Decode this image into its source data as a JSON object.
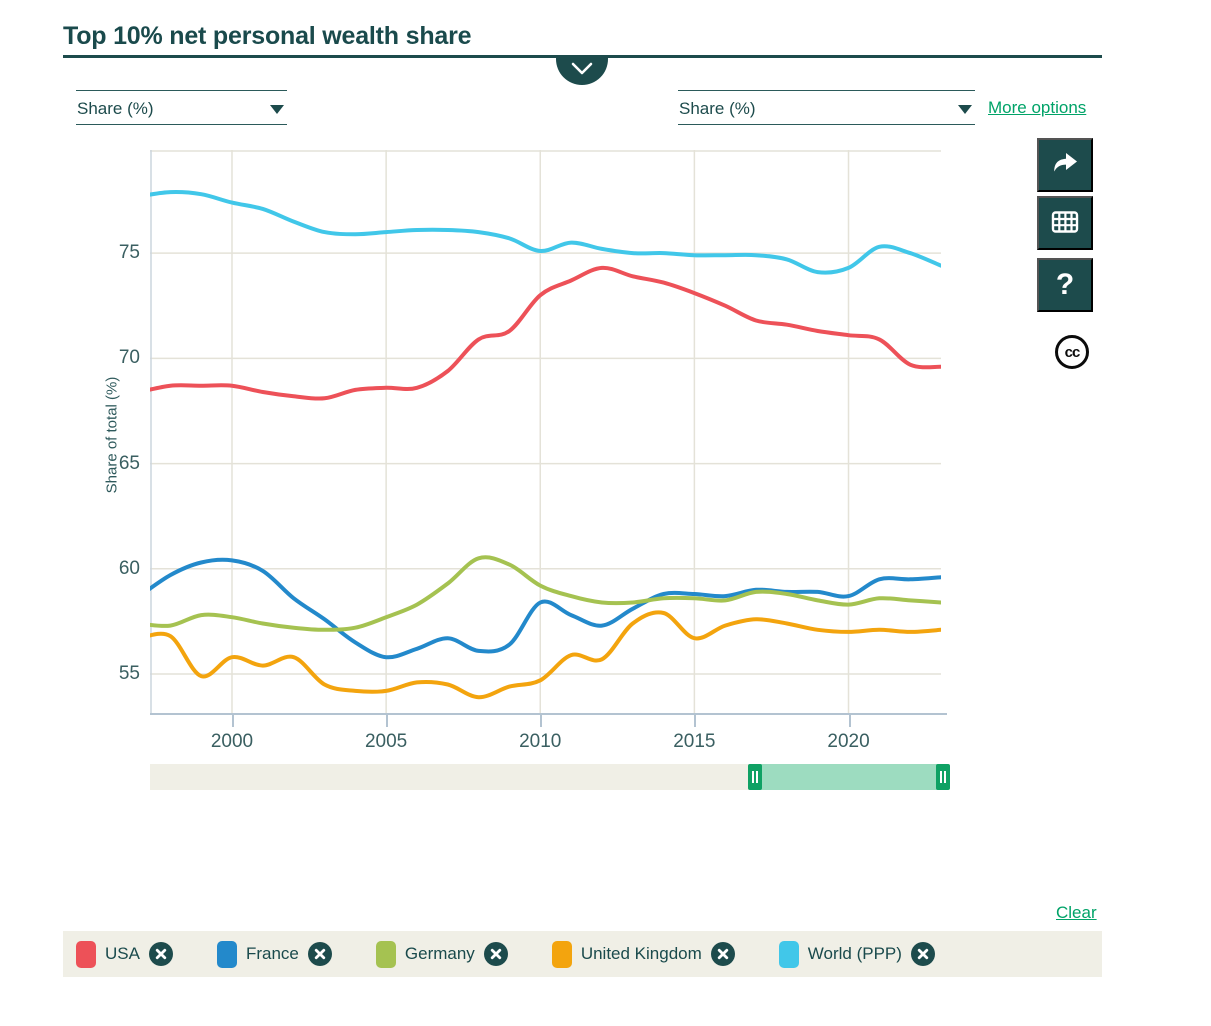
{
  "header": {
    "title": "Top 10% net personal wealth share",
    "collapse_icon": "chevron-down"
  },
  "controls": {
    "left_axis_select": {
      "value": "Share (%)",
      "caret_icon": "triangle-down"
    },
    "right_axis_select": {
      "value": "Share (%)",
      "caret_icon": "triangle-down"
    },
    "more_options_label": "More options"
  },
  "toolbar": {
    "share_icon": "curved-arrow-right",
    "table_icon": "data-grid",
    "help_label": "?",
    "license_label": "cc"
  },
  "chart_data": {
    "type": "line",
    "title": "Top 10% net personal wealth share",
    "ylabel": "Share of total (%)",
    "xlabel": "",
    "x": [
      1997,
      1998,
      1999,
      2000,
      2001,
      2002,
      2003,
      2004,
      2005,
      2006,
      2007,
      2008,
      2009,
      2010,
      2011,
      2012,
      2013,
      2014,
      2015,
      2016,
      2017,
      2018,
      2019,
      2020,
      2021,
      2022,
      2023
    ],
    "series": [
      {
        "name": "USA",
        "color": "#ed5158",
        "values": [
          68.4,
          68.7,
          68.7,
          68.7,
          68.4,
          68.2,
          68.1,
          68.5,
          68.6,
          68.6,
          69.4,
          70.9,
          71.3,
          73.0,
          73.7,
          74.3,
          73.9,
          73.6,
          73.1,
          72.5,
          71.8,
          71.6,
          71.3,
          71.1,
          70.9,
          69.7,
          69.6
        ]
      },
      {
        "name": "France",
        "color": "#2389cb",
        "values": [
          58.7,
          59.7,
          60.3,
          60.4,
          59.9,
          58.6,
          57.6,
          56.5,
          55.8,
          56.2,
          56.7,
          56.1,
          56.4,
          58.4,
          57.8,
          57.3,
          58.1,
          58.8,
          58.8,
          58.7,
          59.0,
          58.9,
          58.9,
          58.7,
          59.5,
          59.5,
          59.6
        ]
      },
      {
        "name": "Germany",
        "color": "#a5c251",
        "values": [
          57.4,
          57.3,
          57.8,
          57.7,
          57.4,
          57.2,
          57.1,
          57.2,
          57.7,
          58.3,
          59.3,
          60.5,
          60.2,
          59.2,
          58.7,
          58.4,
          58.4,
          58.6,
          58.6,
          58.5,
          58.9,
          58.8,
          58.5,
          58.3,
          58.6,
          58.5,
          58.4
        ]
      },
      {
        "name": "United Kingdom",
        "color": "#f3a40e",
        "values": [
          56.7,
          56.8,
          54.9,
          55.8,
          55.4,
          55.8,
          54.5,
          54.2,
          54.2,
          54.6,
          54.5,
          53.9,
          54.4,
          54.7,
          55.9,
          55.7,
          57.4,
          57.9,
          56.7,
          57.3,
          57.6,
          57.4,
          57.1,
          57.0,
          57.1,
          57.0,
          57.1
        ]
      },
      {
        "name": "World (PPP)",
        "color": "#41c7e9",
        "values": [
          77.7,
          77.9,
          77.8,
          77.4,
          77.1,
          76.5,
          76.0,
          75.9,
          76.0,
          76.1,
          76.1,
          76.0,
          75.7,
          75.1,
          75.5,
          75.2,
          75.0,
          75.0,
          74.9,
          74.9,
          74.9,
          74.7,
          74.1,
          74.3,
          75.3,
          75.0,
          74.4
        ]
      }
    ],
    "yticks": [
      55,
      60,
      65,
      70,
      75
    ],
    "xticks": [
      2000,
      2005,
      2010,
      2015,
      2020
    ],
    "ylim": [
      53.1,
      79.9
    ],
    "xlim": [
      1997.34,
      2023
    ],
    "grid": true,
    "legend_position": "bottom"
  },
  "timeline_slider": {
    "selected_range_fraction": [
      0.755,
      1.0
    ],
    "handle_icon": "pause-bars"
  },
  "actions": {
    "clear_label": "Clear"
  },
  "legend": {
    "remove_icon": "circle-x",
    "items": [
      {
        "label": "USA",
        "color": "#ed5158"
      },
      {
        "label": "France",
        "color": "#2389cb"
      },
      {
        "label": "Germany",
        "color": "#a5c251"
      },
      {
        "label": "United Kingdom",
        "color": "#f3a40e"
      },
      {
        "label": "World (PPP)",
        "color": "#41c7e9"
      }
    ]
  },
  "colors": {
    "brand_teal": "#1d4b4c",
    "link_green": "#00a368",
    "slider_selected": "#9ddcc0",
    "slider_handle": "#0fa164",
    "panel_beige": "#f0efe6"
  }
}
